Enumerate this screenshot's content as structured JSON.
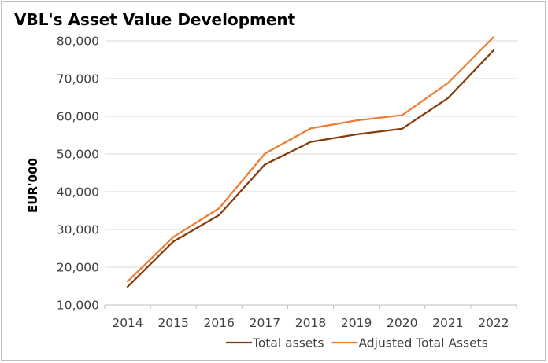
{
  "chart_data": {
    "type": "line",
    "title": "VBL's Asset Value Development",
    "xlabel": "",
    "ylabel": "EUR'000",
    "categories": [
      "2014",
      "2015",
      "2016",
      "2017",
      "2018",
      "2019",
      "2020",
      "2021",
      "2022"
    ],
    "ylim": [
      10000,
      80000
    ],
    "yticks": [
      10000,
      20000,
      30000,
      40000,
      50000,
      60000,
      70000,
      80000
    ],
    "ytick_labels": [
      "10,000",
      "20,000",
      "30,000",
      "40,000",
      "50,000",
      "60,000",
      "70,000",
      "80,000"
    ],
    "grid": "horizontal",
    "legend_position": "bottom-right",
    "series": [
      {
        "name": "Total assets",
        "color": "#843c0c",
        "values": [
          14800,
          26800,
          33800,
          47200,
          53200,
          55200,
          56700,
          64800,
          77500
        ]
      },
      {
        "name": "Adjusted Total Assets",
        "color": "#ed7d31",
        "values": [
          16200,
          28000,
          35600,
          50100,
          56800,
          58900,
          60300,
          68800,
          81000
        ]
      }
    ]
  }
}
